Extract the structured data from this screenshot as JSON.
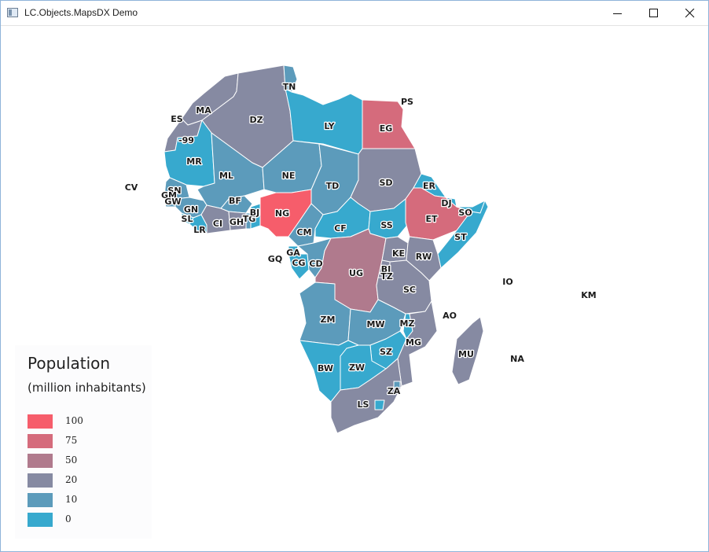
{
  "window": {
    "title": "LC.Objects.MapsDX Demo",
    "icons": [
      "app-icon",
      "minimize-icon",
      "maximize-icon",
      "close-icon"
    ]
  },
  "colors": {
    "c100": "#f65d6b",
    "c75": "#d56b7c",
    "c50": "#b07a8d",
    "c20": "#868aa2",
    "c10": "#5c9bbb",
    "c0": "#37a9ce"
  },
  "legend": {
    "title": "Population",
    "subtitle": "(million inhabitants)",
    "items": [
      {
        "label": "100",
        "color": "#f65d6b"
      },
      {
        "label": "75",
        "color": "#d56b7c"
      },
      {
        "label": "50",
        "color": "#b07a8d"
      },
      {
        "label": "20",
        "color": "#868aa2"
      },
      {
        "label": "10",
        "color": "#5c9bbb"
      },
      {
        "label": "0",
        "color": "#37a9ce"
      }
    ]
  },
  "map": {
    "countries": [
      {
        "code": "MA"
      },
      {
        "code": "ES"
      },
      {
        "code": "DZ"
      },
      {
        "code": "TN"
      },
      {
        "code": "LY"
      },
      {
        "code": "EG"
      },
      {
        "code": "PS"
      },
      {
        "code": "-99"
      },
      {
        "code": "MR"
      },
      {
        "code": "ML"
      },
      {
        "code": "NE"
      },
      {
        "code": "TD"
      },
      {
        "code": "SD"
      },
      {
        "code": "ER"
      },
      {
        "code": "CV"
      },
      {
        "code": "SN"
      },
      {
        "code": "GM"
      },
      {
        "code": "GW"
      },
      {
        "code": "GN"
      },
      {
        "code": "SL"
      },
      {
        "code": "LR"
      },
      {
        "code": "CI"
      },
      {
        "code": "GH"
      },
      {
        "code": "TG"
      },
      {
        "code": "BJ"
      },
      {
        "code": "BF"
      },
      {
        "code": "NG"
      },
      {
        "code": "CM"
      },
      {
        "code": "CF"
      },
      {
        "code": "SS"
      },
      {
        "code": "ET"
      },
      {
        "code": "DJ"
      },
      {
        "code": "SO"
      },
      {
        "code": "ST"
      },
      {
        "code": "GQ"
      },
      {
        "code": "GA"
      },
      {
        "code": "CG"
      },
      {
        "code": "CD"
      },
      {
        "code": "UG"
      },
      {
        "code": "KE"
      },
      {
        "code": "RW"
      },
      {
        "code": "BI"
      },
      {
        "code": "TZ"
      },
      {
        "code": "SC"
      },
      {
        "code": "IO"
      },
      {
        "code": "KM"
      },
      {
        "code": "AO"
      },
      {
        "code": "ZM"
      },
      {
        "code": "MW"
      },
      {
        "code": "MZ"
      },
      {
        "code": "MG"
      },
      {
        "code": "MU"
      },
      {
        "code": "NA"
      },
      {
        "code": "BW"
      },
      {
        "code": "ZW"
      },
      {
        "code": "SZ"
      },
      {
        "code": "ZA"
      },
      {
        "code": "LS"
      }
    ]
  }
}
